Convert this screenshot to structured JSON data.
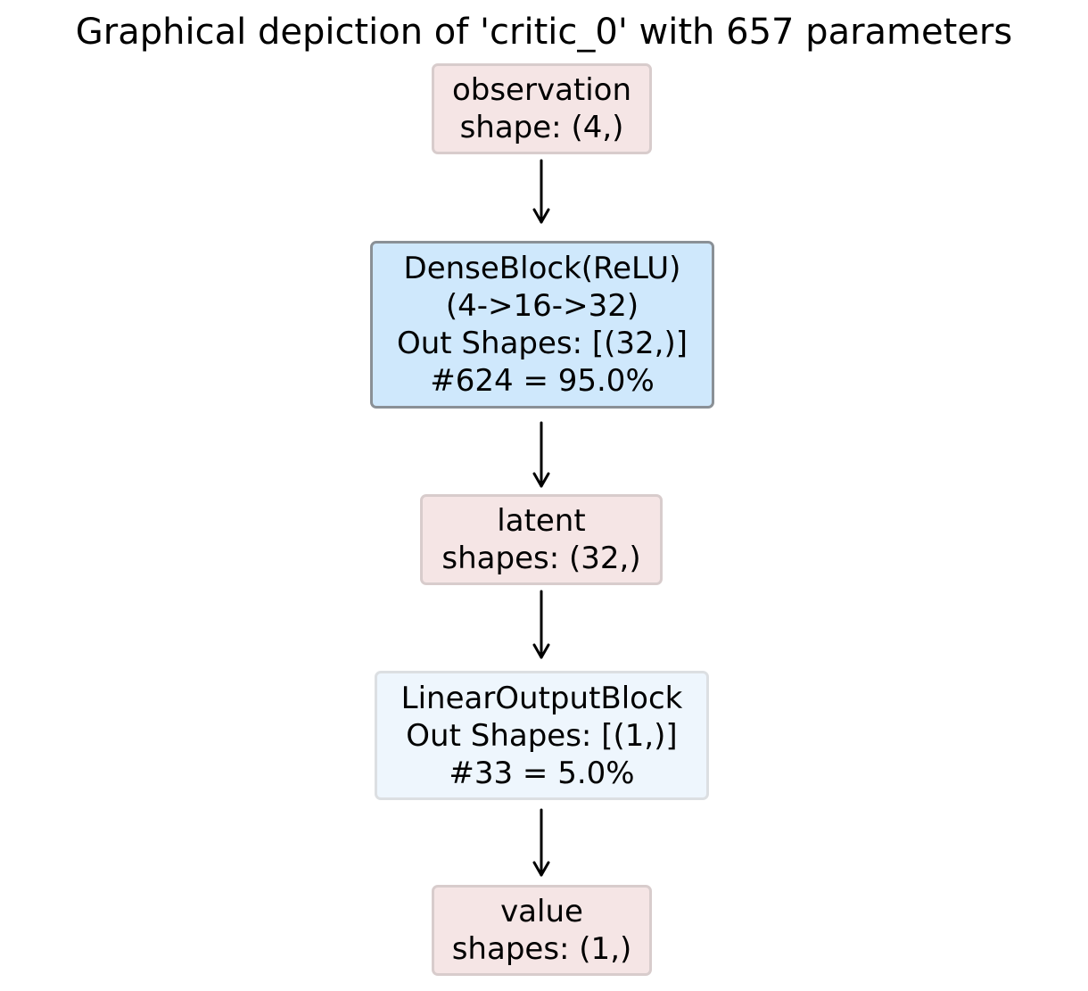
{
  "title": "Graphical depiction of 'critic_0' with 657 parameters",
  "nodes": {
    "observation": {
      "line1": "observation",
      "line2": "shape: (4,)"
    },
    "dense_block": {
      "line1": "DenseBlock(ReLU)",
      "line2": "(4->16->32)",
      "line3": "Out Shapes: [(32,)]",
      "line4": "#624 = 95.0%"
    },
    "latent": {
      "line1": "latent",
      "line2": "shapes: (32,)"
    },
    "linear_output_block": {
      "line1": "LinearOutputBlock",
      "line2": "Out Shapes: [(1,)]",
      "line3": "#33 = 5.0%"
    },
    "value": {
      "line1": "value",
      "line2": "shapes: (1,)"
    }
  },
  "colors": {
    "io_fill": "#f5e5e5",
    "io_border": "#d8cccc",
    "dense_fill": "#cfe8fc",
    "dense_border": "#8a9096",
    "linear_fill": "#eef6fd",
    "linear_border": "#dcdfe2",
    "arrow": "#000000"
  }
}
